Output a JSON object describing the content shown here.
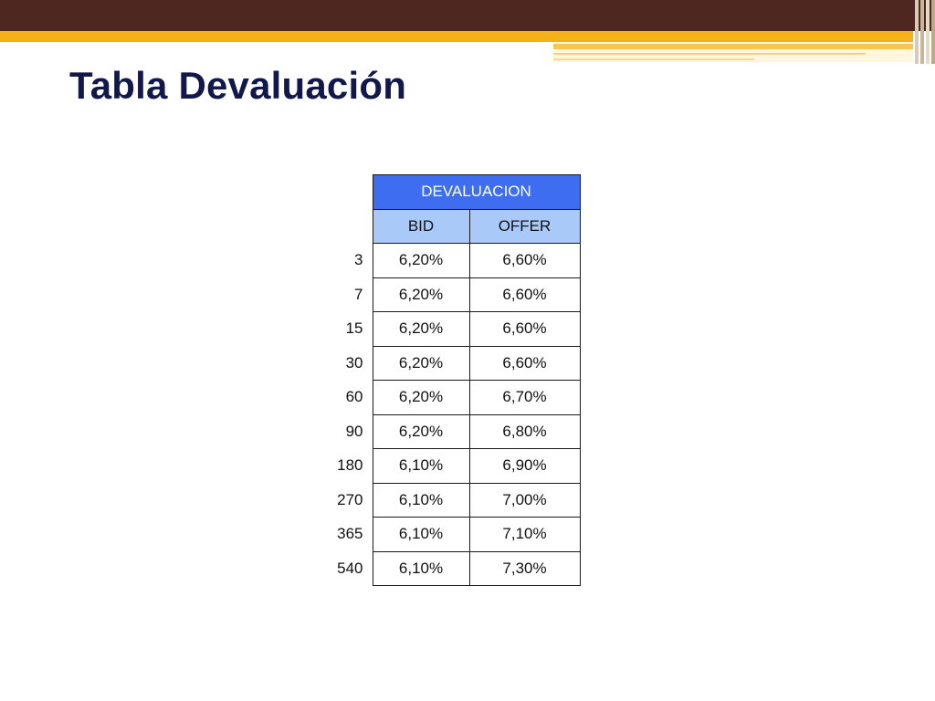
{
  "slide": {
    "title": "Tabla Devaluación"
  },
  "table": {
    "group_header": "DEVALUACION",
    "columns": [
      "BID",
      "OFFER"
    ],
    "rows": [
      {
        "term": "3",
        "bid": "6,20%",
        "offer": "6,60%"
      },
      {
        "term": "7",
        "bid": "6,20%",
        "offer": "6,60%"
      },
      {
        "term": "15",
        "bid": "6,20%",
        "offer": "6,60%"
      },
      {
        "term": "30",
        "bid": "6,20%",
        "offer": "6,60%"
      },
      {
        "term": "60",
        "bid": "6,20%",
        "offer": "6,70%"
      },
      {
        "term": "90",
        "bid": "6,20%",
        "offer": "6,80%"
      },
      {
        "term": "180",
        "bid": "6,10%",
        "offer": "6,90%"
      },
      {
        "term": "270",
        "bid": "6,10%",
        "offer": "7,00%"
      },
      {
        "term": "365",
        "bid": "6,10%",
        "offer": "7,10%"
      },
      {
        "term": "540",
        "bid": "6,10%",
        "offer": "7,30%"
      }
    ]
  },
  "colors": {
    "top_bar": "#4e2820",
    "gold_band": "#f4b21a",
    "title_text": "#12184a",
    "header_main": "#3f6df0",
    "header_sub": "#a9c9f8"
  }
}
